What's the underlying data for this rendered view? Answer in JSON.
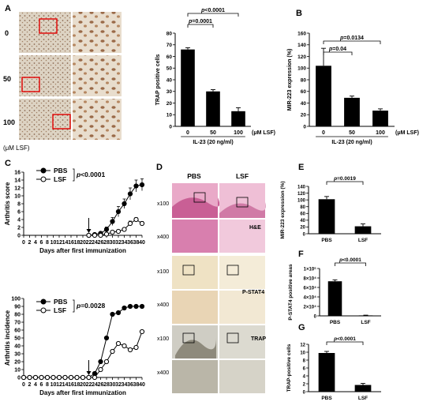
{
  "panels": {
    "A": {
      "letter": "A",
      "rows": [
        "0",
        "50",
        "100"
      ],
      "unit": "(μM LSF)"
    },
    "C": {
      "letter": "C"
    },
    "D": {
      "letter": "D",
      "cols": [
        "PBS",
        "LSF"
      ],
      "mags": [
        "x100",
        "x400",
        "x100",
        "x400",
        "x100",
        "x400"
      ],
      "stains": [
        "H&E",
        "P-STAT4",
        "TRAP"
      ]
    }
  },
  "colors": {
    "bar": "#000000",
    "he_tissue": "#d47aa8",
    "he_bg": "#f0c6dc",
    "stat4_bg": "#efe6cf",
    "trap_bg": "#e4e1d8"
  },
  "chart_data": [
    {
      "id": "A-chart",
      "type": "bar",
      "ylabel": "TRAP positive cells",
      "categories": [
        "0",
        "50",
        "100"
      ],
      "values": [
        66,
        30,
        13
      ],
      "errors": [
        1.5,
        1.5,
        3
      ],
      "ylim": [
        0,
        80
      ],
      "yticks": [
        0,
        10,
        20,
        30,
        40,
        50,
        60,
        70,
        80
      ],
      "unit_label": "(μM LSF)",
      "group_label": "IL-23 (20 ng/ml)",
      "pvalues": [
        {
          "text": "p<0.0001",
          "from": 0,
          "to": 2
        },
        {
          "text": "p=0.0001",
          "from": 0,
          "to": 1
        }
      ]
    },
    {
      "id": "B-chart",
      "letter": "B",
      "type": "bar",
      "ylabel": "MIR-223 expression (%)",
      "categories": [
        "0",
        "50",
        "100"
      ],
      "values": [
        104,
        49,
        27
      ],
      "errors": [
        30,
        3,
        3
      ],
      "ylim": [
        0,
        160
      ],
      "yticks": [
        0,
        20,
        40,
        60,
        80,
        100,
        120,
        140,
        160
      ],
      "unit_label": "(μM LSF)",
      "group_label": "IL-23 (20 ng/ml)",
      "pvalues": [
        {
          "text": "p=0.0134",
          "from": 0,
          "to": 2
        },
        {
          "text": "p=0.04",
          "from": 0,
          "to": 1
        }
      ]
    },
    {
      "id": "C-score",
      "type": "line",
      "ylabel": "Arthritis score",
      "xlabel": "Days after first immunization",
      "x": [
        0,
        2,
        4,
        6,
        8,
        10,
        12,
        14,
        16,
        18,
        20,
        22,
        24,
        26,
        28,
        30,
        32,
        34,
        36,
        38,
        40
      ],
      "xticks": [
        0,
        2,
        4,
        6,
        8,
        10,
        12,
        14,
        16,
        18,
        20,
        22,
        24,
        26,
        28,
        30,
        32,
        34,
        36,
        38,
        40
      ],
      "xlim": [
        0,
        40
      ],
      "ylim": [
        0,
        16
      ],
      "yticks": [
        0,
        2,
        4,
        6,
        8,
        10,
        12,
        14,
        16
      ],
      "arrow_x": 22,
      "series": [
        {
          "name": "PBS",
          "filled": true,
          "x": [
            22,
            24,
            26,
            28,
            30,
            32,
            34,
            36,
            38,
            40
          ],
          "y": [
            0,
            0.2,
            0.5,
            1.5,
            3.5,
            6,
            8,
            10.5,
            12.5,
            12.8
          ],
          "err": [
            0,
            0.2,
            0.3,
            0.6,
            1,
            1.3,
            1.2,
            1.5,
            1.5,
            1.5
          ]
        },
        {
          "name": "LSF",
          "filled": false,
          "x": [
            22,
            24,
            26,
            28,
            30,
            32,
            34,
            36,
            38,
            40
          ],
          "y": [
            0,
            0,
            0,
            0.3,
            0.8,
            1,
            1.5,
            3,
            4,
            3
          ],
          "err": [
            0,
            0,
            0,
            0.2,
            0.3,
            0.3,
            0.4,
            0.6,
            0.5,
            0.5
          ]
        }
      ],
      "pvalue": "p<0.0001"
    },
    {
      "id": "C-incidence",
      "type": "line",
      "ylabel": "Arthritis incidence",
      "xlabel": "Days after first immunization",
      "xticks": [
        0,
        2,
        4,
        6,
        8,
        10,
        12,
        14,
        16,
        18,
        20,
        22,
        24,
        26,
        28,
        30,
        32,
        34,
        36,
        38,
        40
      ],
      "xlim": [
        0,
        40
      ],
      "ylim": [
        0,
        100
      ],
      "yticks": [
        0,
        10,
        20,
        30,
        40,
        50,
        60,
        70,
        80,
        90,
        100
      ],
      "arrow_x": 22,
      "series": [
        {
          "name": "PBS",
          "filled": true,
          "x": [
            0,
            2,
            4,
            6,
            8,
            10,
            12,
            14,
            16,
            18,
            20,
            22,
            24,
            26,
            28,
            30,
            32,
            34,
            36,
            38,
            40
          ],
          "y": [
            0,
            0,
            0,
            0,
            0,
            0,
            0,
            0,
            0,
            0,
            0,
            0,
            5,
            20,
            50,
            80,
            82,
            88,
            90,
            90,
            90
          ]
        },
        {
          "name": "LSF",
          "filled": false,
          "x": [
            0,
            2,
            4,
            6,
            8,
            10,
            12,
            14,
            16,
            18,
            20,
            22,
            24,
            26,
            28,
            30,
            32,
            34,
            36,
            38,
            40
          ],
          "y": [
            0,
            0,
            0,
            0,
            0,
            0,
            0,
            0,
            0,
            0,
            0,
            0,
            0,
            10,
            20,
            33,
            43,
            40,
            35,
            38,
            58
          ]
        }
      ],
      "pvalue": "p=0.0028"
    },
    {
      "id": "E-chart",
      "letter": "E",
      "type": "bar",
      "ylabel": "MIR-223 expression (%)",
      "categories": [
        "PBS",
        "LSF"
      ],
      "values": [
        102,
        22
      ],
      "errors": [
        8,
        7
      ],
      "ylim": [
        0,
        140
      ],
      "yticks": [
        0,
        20,
        40,
        60,
        80,
        100,
        120,
        140
      ],
      "pvalues": [
        {
          "text": "p=0.0019",
          "from": 0,
          "to": 1
        }
      ]
    },
    {
      "id": "F-chart",
      "letter": "F",
      "type": "bar",
      "ylabel": "P-STAT4 positive areas",
      "categories": [
        "PBS",
        "LSF"
      ],
      "values": [
        7.3,
        0.1
      ],
      "errors": [
        0.3,
        0.05
      ],
      "ylim": [
        0,
        10
      ],
      "yticks": [
        0,
        2,
        4,
        6,
        8,
        10
      ],
      "ytick_labels": [
        "0",
        "2×10⁴",
        "4×10⁴",
        "6×10⁴",
        "8×10⁴",
        "1×10⁵"
      ],
      "pvalues": [
        {
          "text": "p<0.0001",
          "from": 0,
          "to": 1
        }
      ]
    },
    {
      "id": "G-chart",
      "letter": "G",
      "type": "bar",
      "ylabel": "TRAP-positive cells",
      "categories": [
        "PBS",
        "LSF"
      ],
      "values": [
        9.8,
        1.7
      ],
      "errors": [
        0.4,
        0.4
      ],
      "ylim": [
        0,
        12
      ],
      "yticks": [
        0,
        2,
        4,
        6,
        8,
        10,
        12
      ],
      "pvalues": [
        {
          "text": "p<0.0001",
          "from": 0,
          "to": 1
        }
      ]
    }
  ]
}
